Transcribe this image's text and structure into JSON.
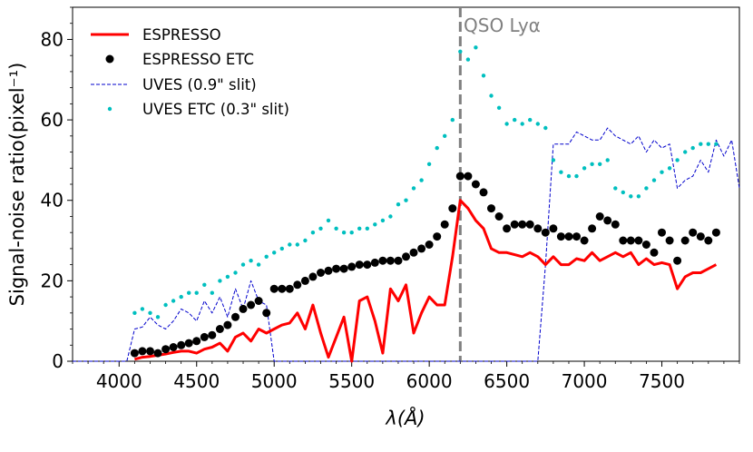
{
  "chart_data": {
    "type": "line",
    "xlabel": "λ(Å)",
    "ylabel": "Signal-noise ratio(pixel⁻¹)",
    "xlim": [
      3700,
      8000
    ],
    "ylim": [
      0,
      88
    ],
    "xticks": [
      4000,
      4500,
      5000,
      5500,
      6000,
      6500,
      7000,
      7500
    ],
    "yticks": [
      0,
      20,
      40,
      60,
      80
    ],
    "grid": false,
    "legend_position": "top-left",
    "vline": {
      "x": 6200,
      "label": "QSO Lyα",
      "color": "#808080"
    },
    "series": [
      {
        "name": "ESPRESSO",
        "style": "line",
        "color": "#ff0000",
        "x": [
          4100,
          4150,
          4200,
          4250,
          4300,
          4350,
          4400,
          4450,
          4500,
          4550,
          4600,
          4650,
          4700,
          4750,
          4800,
          4850,
          4900,
          4950,
          5000,
          5050,
          5100,
          5150,
          5200,
          5250,
          5300,
          5350,
          5400,
          5450,
          5500,
          5550,
          5600,
          5650,
          5700,
          5750,
          5800,
          5850,
          5900,
          5950,
          6000,
          6050,
          6100,
          6150,
          6200,
          6250,
          6300,
          6350,
          6400,
          6450,
          6500,
          6550,
          6600,
          6650,
          6700,
          6750,
          6800,
          6850,
          6900,
          6950,
          7000,
          7050,
          7100,
          7150,
          7200,
          7250,
          7300,
          7350,
          7400,
          7450,
          7500,
          7550,
          7600,
          7650,
          7700,
          7750,
          7800,
          7850
        ],
        "y": [
          0.5,
          1,
          1.2,
          1.5,
          1.8,
          2.2,
          2.5,
          2.5,
          2,
          3,
          3.5,
          4.5,
          2.5,
          6,
          7,
          5,
          8,
          7,
          8,
          9,
          9.5,
          12,
          8,
          14,
          7,
          1,
          6,
          11,
          0,
          15,
          16,
          10,
          2,
          18,
          15,
          19,
          7,
          12,
          16,
          14,
          14,
          26,
          40,
          38,
          35,
          33,
          28,
          27,
          27,
          26.5,
          26,
          27,
          26,
          24,
          26,
          24,
          24,
          25.5,
          25,
          27,
          25,
          26,
          27,
          26,
          27,
          24,
          25.5,
          24,
          24.5,
          24,
          18,
          21,
          22,
          22,
          23,
          24
        ]
      },
      {
        "name": "ESPRESSO ETC",
        "style": "marker",
        "color": "#000000",
        "x": [
          4100,
          4150,
          4200,
          4250,
          4300,
          4350,
          4400,
          4450,
          4500,
          4550,
          4600,
          4650,
          4700,
          4750,
          4800,
          4850,
          4900,
          4950,
          5000,
          5050,
          5100,
          5150,
          5200,
          5250,
          5300,
          5350,
          5400,
          5450,
          5500,
          5550,
          5600,
          5650,
          5700,
          5750,
          5800,
          5850,
          5900,
          5950,
          6000,
          6050,
          6100,
          6150,
          6200,
          6250,
          6300,
          6350,
          6400,
          6450,
          6500,
          6550,
          6600,
          6650,
          6700,
          6750,
          6800,
          6850,
          6900,
          6950,
          7000,
          7050,
          7100,
          7150,
          7200,
          7250,
          7300,
          7350,
          7400,
          7450,
          7500,
          7550,
          7600,
          7650,
          7700,
          7750,
          7800,
          7850
        ],
        "y": [
          2,
          2.5,
          2.5,
          2,
          3,
          3.5,
          4,
          4.5,
          5,
          6,
          6.5,
          8,
          9,
          11,
          13,
          14,
          15,
          12,
          18,
          18,
          18,
          19,
          20,
          21,
          22,
          22.5,
          23,
          23,
          23.5,
          24,
          24,
          24.5,
          25,
          25,
          25,
          26,
          27,
          28,
          29,
          31,
          34,
          38,
          46,
          46,
          44,
          42,
          38,
          36,
          33,
          34,
          34,
          34,
          33,
          32,
          33,
          31,
          31,
          31,
          30,
          33,
          36,
          35,
          34,
          30,
          30,
          30,
          29,
          27,
          32,
          30,
          25,
          30,
          32,
          31,
          30,
          32
        ]
      },
      {
        "name": "UVES (0.9\" slit)",
        "style": "dashed",
        "color": "#0000cc",
        "x": [
          3700,
          3800,
          3900,
          4000,
          4050,
          4100,
          4150,
          4200,
          4250,
          4300,
          4350,
          4400,
          4450,
          4500,
          4550,
          4600,
          4650,
          4700,
          4750,
          4800,
          4850,
          4900,
          4950,
          5000,
          5050,
          6700,
          6750,
          6800,
          6850,
          6900,
          6950,
          7000,
          7050,
          7100,
          7150,
          7200,
          7250,
          7300,
          7350,
          7400,
          7450,
          7500,
          7550,
          7600,
          7650,
          7700,
          7750,
          7800,
          7850,
          7900,
          7950,
          8000
        ],
        "y": [
          0,
          0,
          0,
          0,
          0,
          8,
          8.5,
          11,
          9,
          8,
          10,
          13,
          12,
          10,
          15,
          12,
          16,
          11,
          18,
          13,
          20,
          15,
          14,
          0,
          0,
          0,
          24,
          54,
          54,
          54,
          57,
          56,
          55,
          55,
          58,
          56,
          55,
          54,
          56,
          52,
          55,
          53,
          54,
          43,
          45,
          46,
          50,
          47,
          55,
          51,
          55,
          43
        ]
      },
      {
        "name": "UVES ETC (0.3\" slit)",
        "style": "marker",
        "color": "#00bfbf",
        "x": [
          4100,
          4150,
          4200,
          4250,
          4300,
          4350,
          4400,
          4450,
          4500,
          4550,
          4600,
          4650,
          4700,
          4750,
          4800,
          4850,
          4900,
          4950,
          5000,
          5050,
          5100,
          5150,
          5200,
          5250,
          5300,
          5350,
          5400,
          5450,
          5500,
          5550,
          5600,
          5650,
          5700,
          5750,
          5800,
          5850,
          5900,
          5950,
          6000,
          6050,
          6100,
          6150,
          6200,
          6250,
          6300,
          6350,
          6400,
          6450,
          6500,
          6550,
          6600,
          6650,
          6700,
          6750,
          6800,
          6850,
          6900,
          6950,
          7000,
          7050,
          7100,
          7150,
          7200,
          7250,
          7300,
          7350,
          7400,
          7450,
          7500,
          7550,
          7600,
          7650,
          7700,
          7750,
          7800,
          7850
        ],
        "y": [
          12,
          13,
          12,
          11,
          14,
          15,
          16,
          17,
          17,
          19,
          17,
          20,
          21,
          22,
          24,
          25,
          24,
          26,
          27,
          28,
          29,
          29,
          30,
          32,
          33,
          35,
          33,
          32,
          32,
          33,
          33,
          34,
          35,
          36,
          39,
          40,
          43,
          45,
          49,
          53,
          56,
          60,
          77,
          75,
          78,
          71,
          66,
          63,
          59,
          60,
          59,
          60,
          59,
          58,
          50,
          47,
          46,
          46,
          48,
          49,
          49,
          50,
          43,
          42,
          41,
          41,
          43,
          45,
          47,
          48,
          50,
          52,
          53,
          54,
          54,
          54
        ]
      }
    ]
  }
}
